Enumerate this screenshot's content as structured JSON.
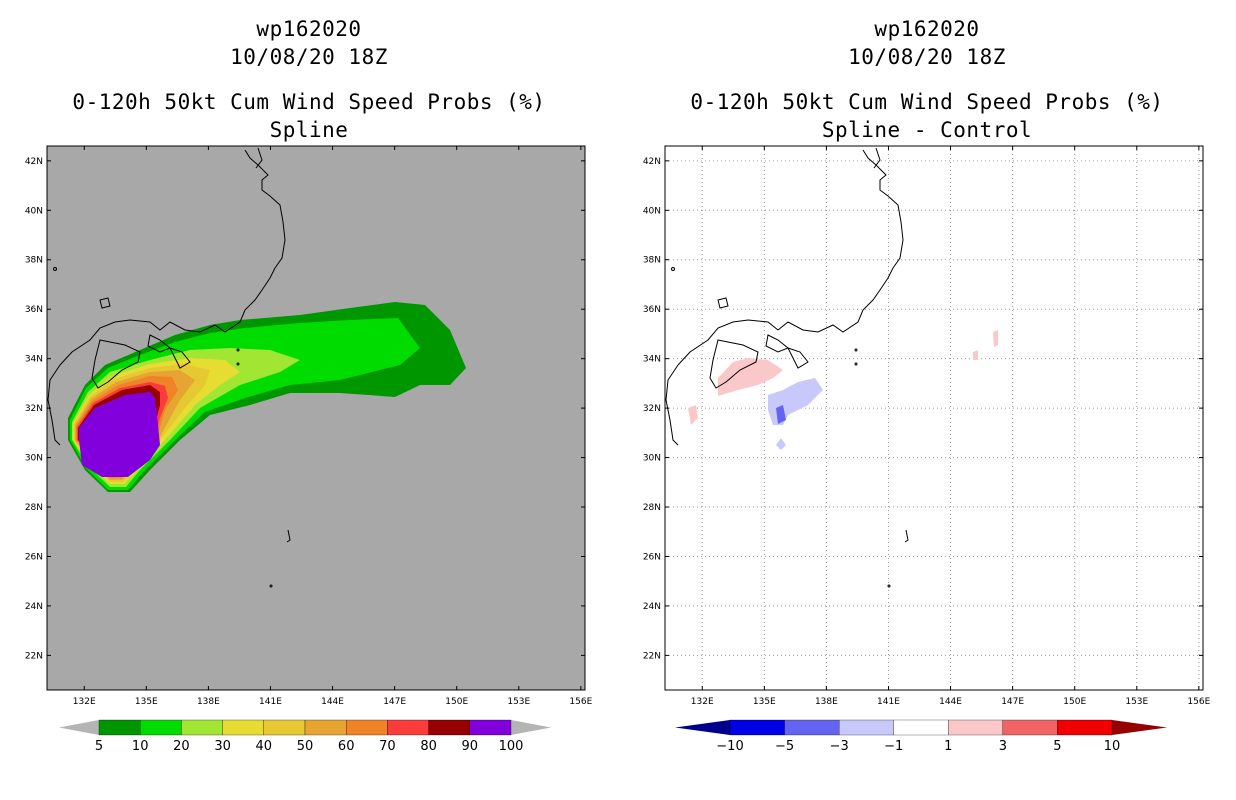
{
  "panels": [
    {
      "storm_id": "wp162020",
      "datetime": "10/08/20 18Z",
      "product": "0-120h 50kt Cum Wind Speed Probs (%)",
      "subtitle": "Spline"
    },
    {
      "storm_id": "wp162020",
      "datetime": "10/08/20 18Z",
      "product": "0-120h 50kt Cum Wind Speed Probs (%)",
      "subtitle": "Spline - Control"
    }
  ],
  "chart_data": [
    {
      "type": "contour-map",
      "title": "0-120h 50kt Cum Wind Speed Probs (%)",
      "subtitle": "Spline",
      "lon_range": [
        130.2,
        156.2
      ],
      "lat_range": [
        20.6,
        42.6
      ],
      "lon_ticks": [
        "132E",
        "135E",
        "138E",
        "141E",
        "144E",
        "147E",
        "150E",
        "153E",
        "156E"
      ],
      "lat_ticks": [
        "22N",
        "24N",
        "26N",
        "28N",
        "30N",
        "32N",
        "34N",
        "36N",
        "38N",
        "40N",
        "42N"
      ],
      "background": "#a8a8a8",
      "colorbar": {
        "labels": [
          "5",
          "10",
          "20",
          "30",
          "40",
          "50",
          "60",
          "70",
          "80",
          "90",
          "100"
        ],
        "colors": [
          "#009600",
          "#00dc00",
          "#a0e632",
          "#e6dc32",
          "#e6c832",
          "#e6a532",
          "#f08228",
          "#fa3c3c",
          "#960000",
          "#8200dc"
        ],
        "end_colors": [
          "#b4b4b4",
          "#b4b4b4"
        ]
      }
    },
    {
      "type": "contour-map",
      "title": "0-120h 50kt Cum Wind Speed Probs (%)",
      "subtitle": "Spline - Control",
      "lon_range": [
        130.2,
        156.2
      ],
      "lat_range": [
        20.6,
        42.6
      ],
      "lon_ticks": [
        "132E",
        "135E",
        "138E",
        "141E",
        "144E",
        "147E",
        "150E",
        "153E",
        "156E"
      ],
      "lat_ticks": [
        "22N",
        "24N",
        "26N",
        "28N",
        "30N",
        "32N",
        "34N",
        "36N",
        "38N",
        "40N",
        "42N"
      ],
      "background": "#ffffff",
      "grid": "dotted",
      "colorbar": {
        "labels": [
          "-10",
          "-5",
          "-3",
          "-1",
          "1",
          "3",
          "5",
          "10"
        ],
        "colors": [
          "#0000e6",
          "#6464f0",
          "#c8c8fa",
          "#ffffff",
          "#fac8c8",
          "#f06464",
          "#f00000"
        ],
        "end_colors": [
          "#00008c",
          "#960000"
        ]
      }
    }
  ]
}
